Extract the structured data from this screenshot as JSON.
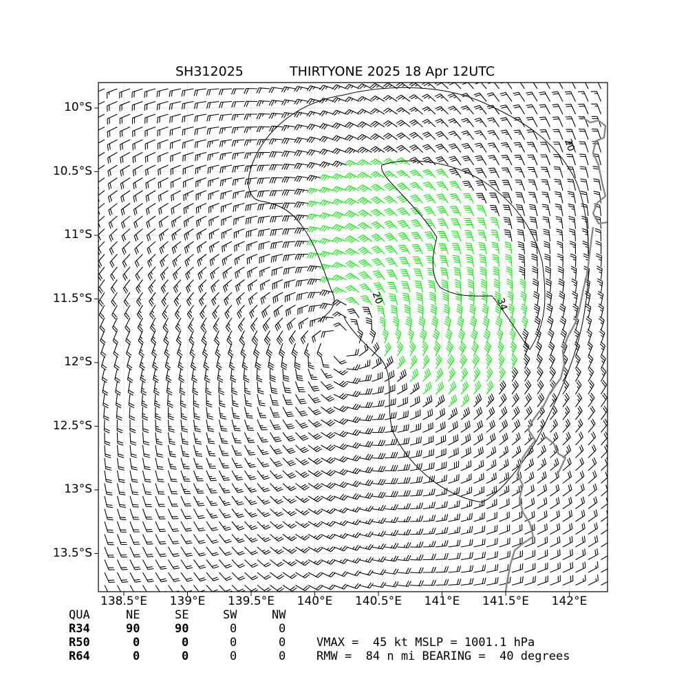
{
  "figure": {
    "title_left": "SH312025",
    "title_right": "THIRTYONE 2025 18 Apr 12UTC"
  },
  "chart_data": {
    "type": "wind-barb-map",
    "x_axis": {
      "range": [
        138.3,
        142.3
      ],
      "ticks": [
        138.5,
        139.0,
        139.5,
        140.0,
        140.5,
        141.0,
        141.5,
        142.0
      ],
      "tick_labels": [
        "138.5°E",
        "139°E",
        "139.5°E",
        "140°E",
        "140.5°E",
        "141°E",
        "141.5°E",
        "142°E"
      ]
    },
    "y_axis": {
      "range": [
        -13.8,
        -9.8
      ],
      "ticks": [
        -10.0,
        -10.5,
        -11.0,
        -11.5,
        -12.0,
        -12.5,
        -13.0,
        -13.5
      ],
      "tick_labels": [
        "10°S",
        "10.5°S",
        "11°S",
        "11.5°S",
        "12°S",
        "12.5°S",
        "13°S",
        "13.5°S"
      ]
    },
    "grid": true,
    "storm_center": {
      "lon": 140.2,
      "lat": -11.85
    },
    "contours": [
      {
        "level": "20",
        "label_positions": [
          [
            141.98,
            -10.3
          ],
          [
            140.47,
            -11.5
          ]
        ]
      },
      {
        "level": "34",
        "label_positions": [
          [
            141.45,
            -11.55
          ]
        ]
      }
    ],
    "barb_colors": {
      "below_34kt": "#000000",
      "34_to_50kt": "#00ee00",
      "50_to_64kt": "#eebb22"
    },
    "coastline_color": "#888888",
    "table": {
      "header": [
        "QUA",
        "NE",
        "SE",
        "SW",
        "NW"
      ],
      "rows": [
        {
          "label": "R34",
          "values": [
            "90",
            "90",
            "0",
            "0"
          ]
        },
        {
          "label": "R50",
          "values": [
            "0",
            "0",
            "0",
            "0"
          ]
        },
        {
          "label": "R64",
          "values": [
            "0",
            "0",
            "0",
            "0"
          ]
        }
      ]
    },
    "info_line1": "VMAX =  45 kt MSLP = 1001.1 hPa",
    "info_line2": "RMW =  84 n mi BEARING =  40 degrees"
  }
}
